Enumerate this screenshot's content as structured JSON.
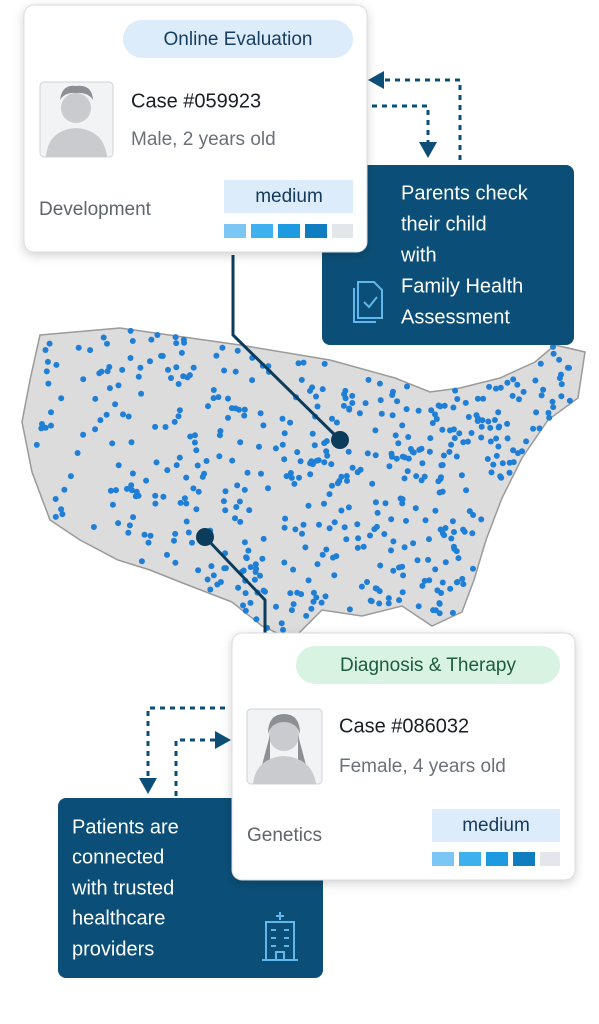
{
  "cards": [
    {
      "badge": "Online Evaluation",
      "case": "Case #059923",
      "details": "Male, 2 years old",
      "category": "Development",
      "level": "medium"
    },
    {
      "badge": "Diagnosis & Therapy",
      "case": "Case #086032",
      "details": "Female, 4 years old",
      "category": "Genetics",
      "level": "medium"
    }
  ],
  "callouts": [
    {
      "lines": [
        "Parents check",
        "their child",
        "with",
        "Family Health",
        "Assessment"
      ]
    },
    {
      "lines": [
        "Patients are",
        "connected",
        "with trusted",
        "healthcare",
        "providers"
      ]
    }
  ]
}
